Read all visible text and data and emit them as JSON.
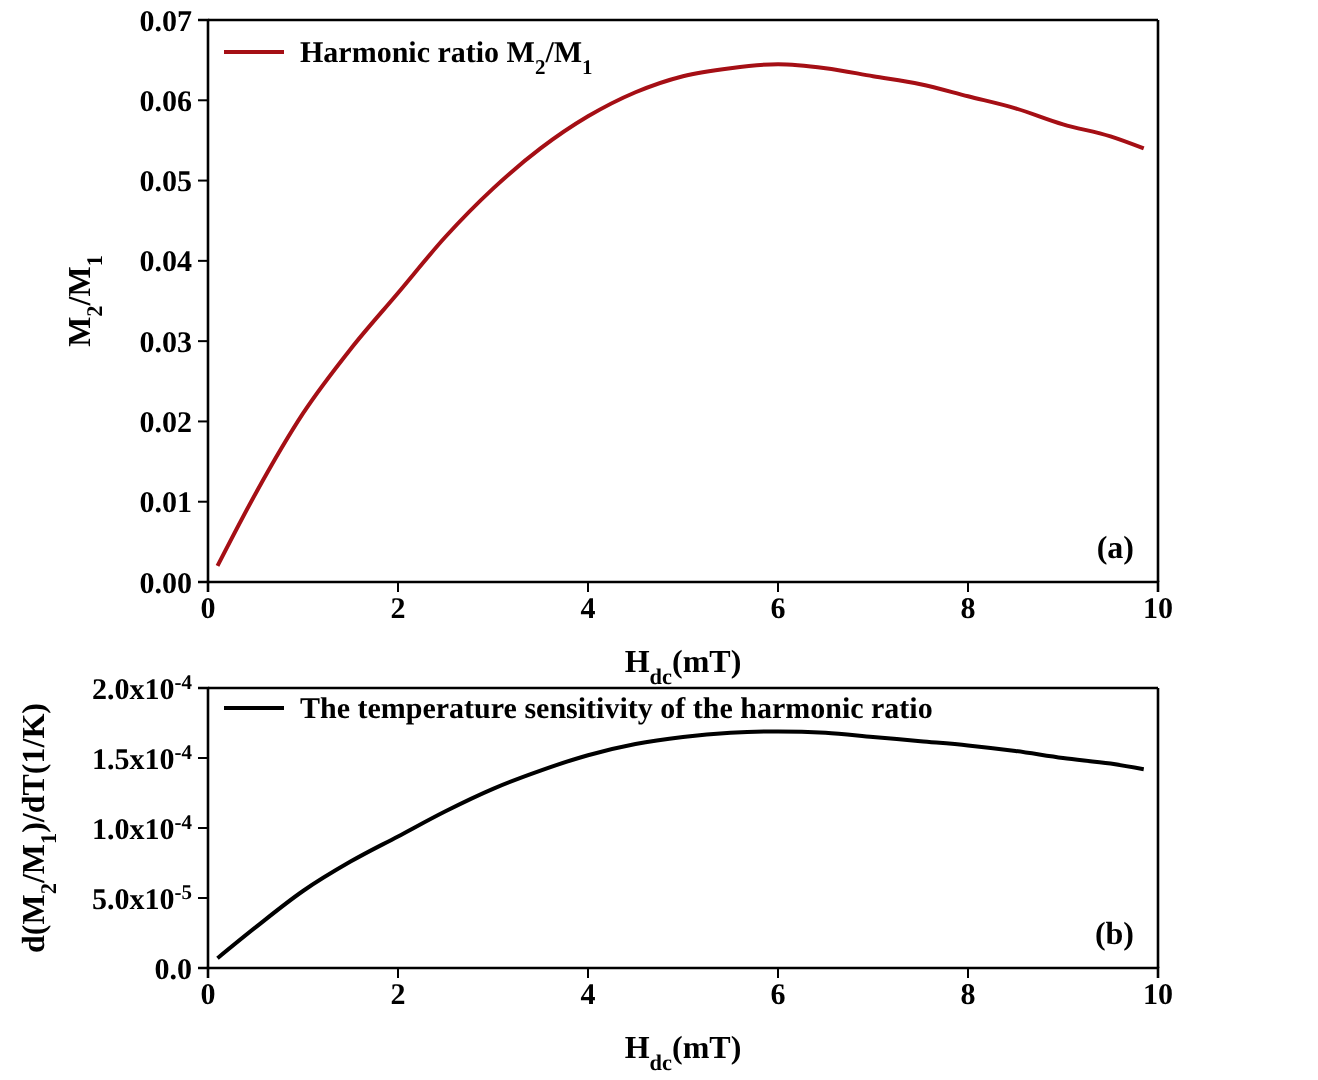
{
  "chart_data": [
    {
      "type": "line",
      "xlabel": "H$_{dc}$(mT)",
      "ylabel": "M$_{2}$/M$_{1}$",
      "xlim": [
        0,
        10
      ],
      "xticks": [
        0,
        2,
        4,
        6,
        8,
        10
      ],
      "ylim": [
        0,
        0.07
      ],
      "yticks": [
        {
          "value": 0,
          "label": "0.00"
        },
        {
          "value": 0.01,
          "label": "0.01"
        },
        {
          "value": 0.02,
          "label": "0.02"
        },
        {
          "value": 0.03,
          "label": "0.03"
        },
        {
          "value": 0.04,
          "label": "0.04"
        },
        {
          "value": 0.05,
          "label": "0.05"
        },
        {
          "value": 0.06,
          "label": "0.06"
        },
        {
          "value": 0.07,
          "label": "0.07"
        }
      ],
      "legend": "top left",
      "annotations": [
        "(a)"
      ],
      "series": [
        {
          "name": "Harmonic ratio M$_{2}$/M$_{1}$",
          "color": "#a50f15",
          "x": [
            0.1,
            0.5,
            1,
            1.5,
            2,
            2.5,
            3,
            3.5,
            4,
            4.5,
            5,
            5.5,
            6,
            6.5,
            7,
            7.5,
            8,
            8.5,
            9,
            9.5,
            9.85
          ],
          "values": [
            0.002,
            0.011,
            0.021,
            0.029,
            0.036,
            0.043,
            0.049,
            0.054,
            0.058,
            0.061,
            0.063,
            0.064,
            0.0645,
            0.064,
            0.063,
            0.062,
            0.0605,
            0.059,
            0.057,
            0.0555,
            0.054
          ]
        }
      ]
    },
    {
      "type": "line",
      "xlabel": "H$_{dc}$(mT)",
      "ylabel": "d(M$_{2}$/M$_{1}$)/dT(1/K)",
      "xlim": [
        0,
        10
      ],
      "xticks": [
        0,
        2,
        4,
        6,
        8,
        10
      ],
      "ylim": [
        0,
        0.0002
      ],
      "yticks": [
        {
          "value": 0,
          "label": "0.0"
        },
        {
          "value": 5e-05,
          "label": "5.0x10$^{-5}$"
        },
        {
          "value": 0.0001,
          "label": "1.0x10$^{-4}$"
        },
        {
          "value": 0.00015,
          "label": "1.5x10$^{-4}$"
        },
        {
          "value": 0.0002,
          "label": "2.0x10$^{-4}$"
        }
      ],
      "legend": "top left",
      "annotations": [
        "(b)"
      ],
      "series": [
        {
          "name": "The temperature sensitivity of the harmonic ratio",
          "color": "#000000",
          "x": [
            0.1,
            0.5,
            1,
            1.5,
            2,
            2.5,
            3,
            3.5,
            4,
            4.5,
            5,
            5.5,
            6,
            6.5,
            7,
            7.5,
            8,
            8.5,
            9,
            9.5,
            9.85
          ],
          "values": [
            7e-06,
            2.9e-05,
            5.5e-05,
            7.6e-05,
            9.4e-05,
            0.000112,
            0.000128,
            0.000141,
            0.000152,
            0.00016,
            0.000165,
            0.000168,
            0.000169,
            0.000168,
            0.000165,
            0.000162,
            0.000159,
            0.000155,
            0.00015,
            0.000146,
            0.000142
          ]
        }
      ]
    }
  ]
}
